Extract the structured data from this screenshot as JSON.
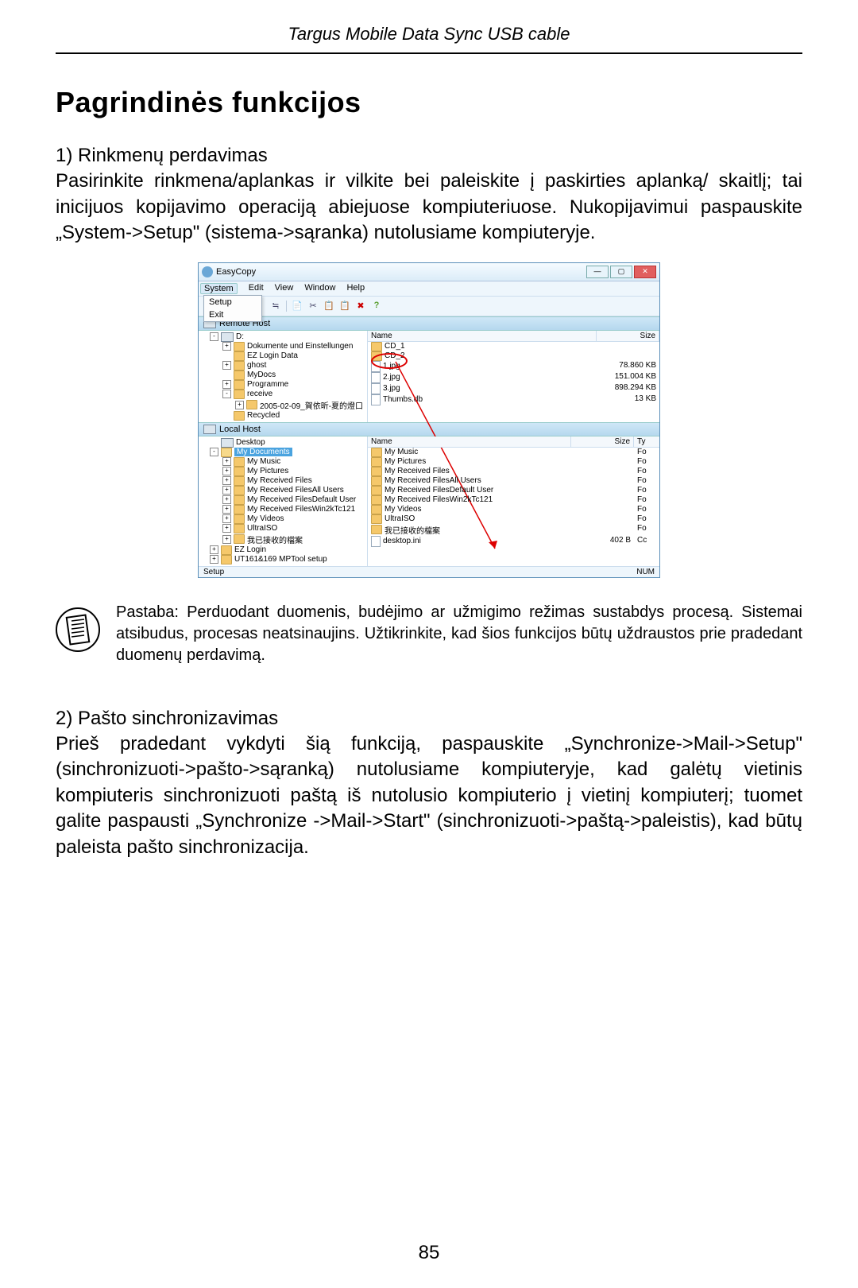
{
  "header": "Targus Mobile Data Sync USB cable",
  "title": "Pagrindinės funkcijos",
  "section1_heading": "1) Rinkmenų perdavimas",
  "section1_body": "Pasirinkite rinkmena/aplankas ir vilkite bei paleiskite į paskirties aplanką/ skaitlį; tai inicijuos kopijavimo operaciją abiejuose kompiuteri­uose. Nukopijavimui paspauskite „System->Setup\" (sistema->sąranka) nutolusiame kompiuteryje.",
  "note_text": "Pastaba: Perduodant duomenis, budėjimo ar užmigimo režimas sustabdys procesą. Sistemai atsibudus, procesas neatsinaujins. Užtikrinkite, kad šios funkcijos būtų uždraustos prie pradedant duomenų perdavimą.",
  "section2_heading": "2) Pašto sinchronizavimas",
  "section2_body": "Prieš pradedant vykdyti šią funkciją, paspauskite „Synchronize->Mail->Setup\" (sinchronizuoti->pašto->sąranką) nutolusiame kompiuteryje, kad galėtų vietinis kompiuteris sinchronizuoti paštą iš nutolusio kompiuterio į vietinį kompiuterį; tuomet galite paspausti „Synchronize ->Mail->Start\" (sinchronizuoti->paštą->paleistis), kad būtų paleista pašto sinchronizacija.",
  "page_number": "85",
  "app": {
    "title": "EasyCopy",
    "menus": [
      "System",
      "Edit",
      "View",
      "Window",
      "Help"
    ],
    "dropdown": [
      "Setup",
      "Exit"
    ],
    "toolbar_icons": [
      "≒",
      "📄",
      "✂",
      "📋",
      "📋",
      "✖",
      "?"
    ],
    "remote": {
      "label": "Remote Host",
      "tree": [
        {
          "lvl": 1,
          "exp": "-",
          "icon": "drive",
          "label": "D:"
        },
        {
          "lvl": 2,
          "exp": "+",
          "icon": "fld",
          "label": "Dokumente und Einstellungen"
        },
        {
          "lvl": 2,
          "exp": "",
          "icon": "fld",
          "label": "EZ Login Data"
        },
        {
          "lvl": 2,
          "exp": "+",
          "icon": "fld",
          "label": "ghost"
        },
        {
          "lvl": 2,
          "exp": "",
          "icon": "fld",
          "label": "MyDocs"
        },
        {
          "lvl": 2,
          "exp": "+",
          "icon": "fld",
          "label": "Programme"
        },
        {
          "lvl": 2,
          "exp": "-",
          "icon": "fld",
          "label": "receive"
        },
        {
          "lvl": 3,
          "exp": "+",
          "icon": "fld",
          "label": "2005-02-09_賀依昕-夏的燈口"
        },
        {
          "lvl": 2,
          "exp": "",
          "icon": "fld",
          "label": "Recycled"
        }
      ],
      "cols": {
        "name": "Name",
        "size": "Size"
      },
      "files": [
        {
          "icon": "fld",
          "name": "CD_1",
          "size": ""
        },
        {
          "icon": "fld",
          "name": "CD_2",
          "size": ""
        },
        {
          "icon": "file",
          "name": "1.jpg",
          "size": "78.860 KB"
        },
        {
          "icon": "file",
          "name": "2.jpg",
          "size": "151.004 KB"
        },
        {
          "icon": "file",
          "name": "3.jpg",
          "size": "898.294 KB"
        },
        {
          "icon": "file",
          "name": "Thumbs.db",
          "size": "13 KB"
        }
      ]
    },
    "local": {
      "label": "Local Host",
      "tree": [
        {
          "lvl": 1,
          "exp": "",
          "icon": "drive",
          "label": "Desktop"
        },
        {
          "lvl": 1,
          "exp": "-",
          "icon": "fld-open",
          "label": "My Documents",
          "sel": true
        },
        {
          "lvl": 2,
          "exp": "+",
          "icon": "fld",
          "label": "My Music"
        },
        {
          "lvl": 2,
          "exp": "+",
          "icon": "fld",
          "label": "My Pictures"
        },
        {
          "lvl": 2,
          "exp": "+",
          "icon": "fld",
          "label": "My Received Files"
        },
        {
          "lvl": 2,
          "exp": "+",
          "icon": "fld",
          "label": "My Received FilesAll Users"
        },
        {
          "lvl": 2,
          "exp": "+",
          "icon": "fld",
          "label": "My Received FilesDefault User"
        },
        {
          "lvl": 2,
          "exp": "+",
          "icon": "fld",
          "label": "My Received FilesWin2kTc121"
        },
        {
          "lvl": 2,
          "exp": "+",
          "icon": "fld",
          "label": "My Videos"
        },
        {
          "lvl": 2,
          "exp": "+",
          "icon": "fld",
          "label": "UltraISO"
        },
        {
          "lvl": 2,
          "exp": "+",
          "icon": "fld",
          "label": "我已接收的檔案"
        },
        {
          "lvl": 1,
          "exp": "+",
          "icon": "fld",
          "label": "EZ Login"
        },
        {
          "lvl": 1,
          "exp": "+",
          "icon": "fld",
          "label": "UT161&169 MPTool setup"
        }
      ],
      "cols": {
        "name": "Name",
        "size": "Size",
        "ty": "Ty"
      },
      "files": [
        {
          "icon": "fld",
          "name": "My Music",
          "size": "",
          "ty": "Fo"
        },
        {
          "icon": "fld",
          "name": "My Pictures",
          "size": "",
          "ty": "Fo"
        },
        {
          "icon": "fld",
          "name": "My Received Files",
          "size": "",
          "ty": "Fo"
        },
        {
          "icon": "fld",
          "name": "My Received FilesAll Users",
          "size": "",
          "ty": "Fo"
        },
        {
          "icon": "fld",
          "name": "My Received FilesDefault User",
          "size": "",
          "ty": "Fo"
        },
        {
          "icon": "fld",
          "name": "My Received FilesWin2kTc121",
          "size": "",
          "ty": "Fo"
        },
        {
          "icon": "fld",
          "name": "My Videos",
          "size": "",
          "ty": "Fo"
        },
        {
          "icon": "fld",
          "name": "UltraISO",
          "size": "",
          "ty": "Fo"
        },
        {
          "icon": "fld",
          "name": "我已接收的檔案",
          "size": "",
          "ty": "Fo"
        },
        {
          "icon": "file",
          "name": "desktop.ini",
          "size": "402 B",
          "ty": "Cc"
        }
      ]
    },
    "status": {
      "left": "Setup",
      "right": "NUM"
    }
  }
}
